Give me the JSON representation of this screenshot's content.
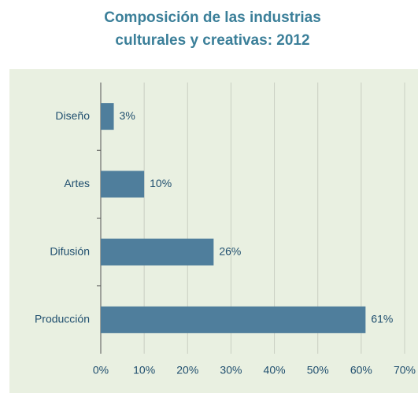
{
  "chart_data": {
    "type": "bar",
    "orientation": "horizontal",
    "title": "Composición de las industrias culturales y creativas: 2012",
    "categories": [
      "Diseño",
      "Artes",
      "Difusión",
      "Producción"
    ],
    "values": [
      3,
      10,
      26,
      61
    ],
    "value_labels": [
      "3%",
      "10%",
      "26%",
      "61%"
    ],
    "color": "#4f7e9c",
    "xlim": [
      0,
      70
    ],
    "xticks": [
      {
        "value": 0,
        "label": "0%"
      },
      {
        "value": 10,
        "label": "10%"
      },
      {
        "value": 20,
        "label": "20%"
      },
      {
        "value": 30,
        "label": "30%"
      },
      {
        "value": 40,
        "label": "40%"
      },
      {
        "value": 50,
        "label": "50%"
      },
      {
        "value": 60,
        "label": "60%"
      },
      {
        "value": 70,
        "label": "70%"
      }
    ],
    "grid": true
  }
}
